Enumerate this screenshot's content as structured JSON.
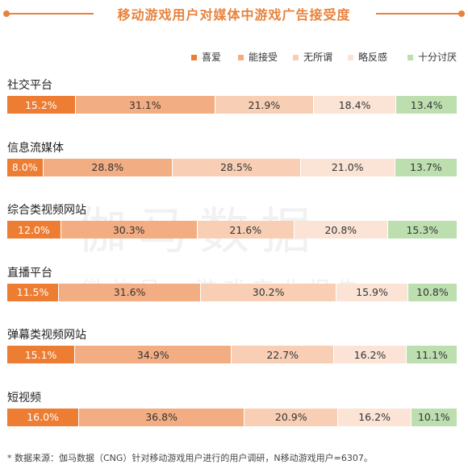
{
  "title": "移动游戏用户对媒体中游戏广告接受度",
  "watermark": {
    "main": "伽马数据",
    "sub": "微信号：游戏产业报告"
  },
  "footnote": "* 数据来源：伽马数据（CNG）针对移动游戏用户进行的用户调研，N移动游戏用户=6307。",
  "colors": [
    "#ec7d33",
    "#f3ad82",
    "#f8cfb5",
    "#fbe4d6",
    "#bddfb0"
  ],
  "chart_data": {
    "type": "bar",
    "stacked": true,
    "orientation": "horizontal",
    "percent": true,
    "legend_position": "top-right",
    "title": "移动游戏用户对媒体中游戏广告接受度",
    "categories": [
      "社交平台",
      "信息流媒体",
      "综合类视频网站",
      "直播平台",
      "弹幕类视频网站",
      "短视频"
    ],
    "series": [
      {
        "name": "喜爱",
        "values": [
          15.2,
          8.0,
          12.0,
          11.5,
          15.1,
          16.0
        ]
      },
      {
        "name": "能接受",
        "values": [
          31.1,
          28.8,
          30.3,
          31.6,
          34.9,
          36.8
        ]
      },
      {
        "name": "无所谓",
        "values": [
          21.9,
          28.5,
          21.6,
          30.2,
          22.7,
          20.9
        ]
      },
      {
        "name": "略反感",
        "values": [
          18.4,
          21.0,
          20.8,
          15.9,
          16.2,
          16.2
        ]
      },
      {
        "name": "十分讨厌",
        "values": [
          13.4,
          13.7,
          15.3,
          10.8,
          11.1,
          10.1
        ]
      }
    ]
  }
}
